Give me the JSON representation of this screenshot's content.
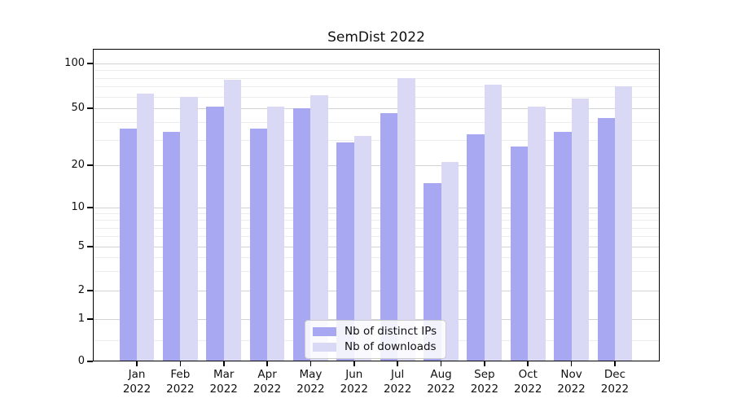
{
  "title": "SemDist 2022",
  "chart_data": {
    "type": "bar",
    "title": "SemDist 2022",
    "categories": [
      "Jan",
      "Feb",
      "Mar",
      "Apr",
      "May",
      "Jun",
      "Jul",
      "Aug",
      "Sep",
      "Oct",
      "Nov",
      "Dec"
    ],
    "year_label": "2022",
    "series": [
      {
        "name": "Nb of distinct IPs",
        "color": "#a7a7f2",
        "values": [
          36,
          34,
          51,
          36,
          50,
          29,
          46,
          15,
          33,
          27,
          34,
          43
        ]
      },
      {
        "name": "Nb of downloads",
        "color": "#d9d9f6",
        "values": [
          63,
          60,
          78,
          51,
          61,
          32,
          80,
          21,
          72,
          51,
          58,
          70
        ]
      }
    ],
    "xlabel": "",
    "ylabel": "",
    "y_ticks": [
      0,
      1,
      2,
      5,
      10,
      20,
      50,
      100
    ],
    "y_minor_ticks": [
      0.5,
      3,
      4,
      6,
      7,
      8,
      9,
      30,
      40,
      60,
      70,
      80,
      90
    ],
    "y_scale": "symlog",
    "ylim": [
      0,
      130
    ],
    "grid": true,
    "legend_position": "lower center"
  }
}
